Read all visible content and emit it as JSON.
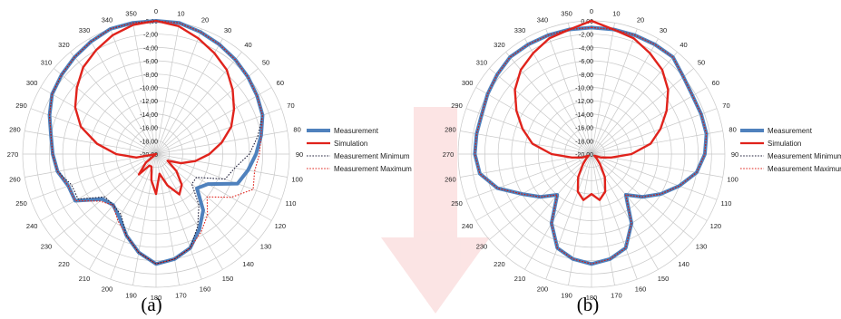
{
  "chart_data": [
    {
      "type": "polar-line",
      "caption": "(a)",
      "angle_labels": [
        "0",
        "10",
        "20",
        "30",
        "40",
        "50",
        "60",
        "70",
        "80",
        "90",
        "100",
        "110",
        "120",
        "130",
        "140",
        "150",
        "160",
        "170",
        "180",
        "190",
        "200",
        "210",
        "220",
        "230",
        "240",
        "250",
        "260",
        "270",
        "280",
        "290",
        "300",
        "310",
        "320",
        "330",
        "340",
        "350"
      ],
      "radial_ticks": [
        "0,00",
        "-2,00",
        "-4,00",
        "-6,00",
        "-8,00",
        "-10,00",
        "-12,00",
        "-14,00",
        "-16,00",
        "-18,00",
        "-20,00"
      ],
      "rlim": [
        -20,
        0
      ],
      "legend": [
        {
          "name": "Measurement",
          "color": "#4f81bd",
          "style": "solid"
        },
        {
          "name": "Simulation",
          "color": "#e0231c",
          "style": "solid"
        },
        {
          "name": "Measurement Minimum",
          "color": "#1f1f3a",
          "style": "dotted"
        },
        {
          "name": "Measurement Maximum",
          "color": "#e0231c",
          "style": "dotted"
        }
      ],
      "series": [
        {
          "name": "Measurement",
          "angles": [
            0,
            10,
            20,
            30,
            40,
            50,
            60,
            70,
            80,
            90,
            100,
            110,
            120,
            130,
            140,
            150,
            160,
            170,
            180,
            190,
            200,
            210,
            220,
            230,
            240,
            250,
            260,
            270,
            280,
            290,
            300,
            310,
            320,
            330,
            340,
            350
          ],
          "values": [
            0,
            0,
            -0.5,
            -1,
            -1.5,
            -2,
            -2.5,
            -3,
            -4,
            -5,
            -6,
            -7,
            -11,
            -12,
            -9,
            -7,
            -5,
            -4,
            -3.5,
            -5,
            -7,
            -9,
            -10,
            -9.5,
            -6,
            -6,
            -5,
            -4.5,
            -4,
            -3,
            -2,
            -1.5,
            -1,
            -0.5,
            0,
            0
          ]
        },
        {
          "name": "Simulation",
          "angles": [
            0,
            10,
            20,
            30,
            40,
            50,
            60,
            70,
            80,
            90,
            100,
            110,
            120,
            130,
            140,
            150,
            160,
            170,
            180,
            190,
            200,
            210,
            220,
            230,
            240,
            250,
            260,
            270,
            280,
            290,
            300,
            310,
            320,
            330,
            340,
            350
          ],
          "values": [
            0,
            -0.5,
            -1.5,
            -2.5,
            -3.5,
            -5,
            -6.5,
            -8,
            -10,
            -12,
            -14,
            -16,
            -18,
            -16,
            -14,
            -13,
            -15,
            -17,
            -14,
            -16,
            -18,
            -18,
            -16,
            -18,
            -20,
            -20,
            -17,
            -14,
            -11,
            -8,
            -6,
            -4.5,
            -3,
            -2,
            -1,
            -0.3
          ]
        },
        {
          "name": "Measurement Minimum",
          "angles": [
            0,
            10,
            20,
            30,
            40,
            50,
            60,
            70,
            80,
            90,
            100,
            110,
            120,
            130,
            140,
            150,
            160,
            170,
            180,
            190,
            200,
            210,
            220,
            230,
            240,
            250,
            260,
            270,
            280,
            290,
            300,
            310,
            320,
            330,
            340,
            350
          ],
          "values": [
            0,
            0,
            -0.5,
            -1,
            -1.5,
            -2,
            -2.5,
            -3,
            -4.5,
            -6,
            -8,
            -9,
            -13,
            -13,
            -10,
            -7.5,
            -5,
            -4,
            -3.5,
            -5,
            -7,
            -9.5,
            -10,
            -10,
            -6.5,
            -6.5,
            -5,
            -4.5,
            -4,
            -3,
            -2,
            -1.5,
            -1,
            -0.5,
            0,
            0
          ]
        },
        {
          "name": "Measurement Maximum",
          "angles": [
            0,
            10,
            20,
            30,
            40,
            50,
            60,
            70,
            80,
            90,
            100,
            110,
            120,
            130,
            140,
            150,
            160,
            170,
            180,
            190,
            200,
            210,
            220,
            230,
            240,
            250,
            260,
            270,
            280,
            290,
            300,
            310,
            320,
            330,
            340,
            350
          ],
          "values": [
            0,
            0,
            -0.5,
            -1,
            -1.5,
            -2,
            -2.5,
            -3,
            -4,
            -4.5,
            -5,
            -4.5,
            -7,
            -10,
            -8,
            -6.5,
            -5,
            -4,
            -3.5,
            -5,
            -7,
            -8.5,
            -10,
            -9,
            -6,
            -6,
            -5,
            -4.5,
            -4,
            -3,
            -2,
            -1.5,
            -1,
            -0.5,
            0,
            0
          ]
        }
      ]
    },
    {
      "type": "polar-line",
      "caption": "(b)",
      "angle_labels": [
        "0",
        "10",
        "20",
        "30",
        "40",
        "50",
        "60",
        "70",
        "80",
        "90",
        "100",
        "110",
        "120",
        "130",
        "140",
        "150",
        "160",
        "170",
        "180",
        "190",
        "200",
        "210",
        "220",
        "230",
        "240",
        "250",
        "260",
        "270",
        "280",
        "290",
        "300",
        "310",
        "320",
        "330",
        "340",
        "350"
      ],
      "radial_ticks": [
        "0,00",
        "-2,00",
        "-4,00",
        "-6,00",
        "-8,00",
        "-10,00",
        "-12,00",
        "-14,00",
        "-16,00",
        "-18,00",
        "-20,00"
      ],
      "rlim": [
        -20,
        0
      ],
      "legend": [
        {
          "name": "Measurement",
          "color": "#4f81bd",
          "style": "solid"
        },
        {
          "name": "Simulation",
          "color": "#e0231c",
          "style": "solid"
        },
        {
          "name": "Measurement Minimum",
          "color": "#1f1f3a",
          "style": "dotted"
        },
        {
          "name": "Measurement Maximum",
          "color": "#e0231c",
          "style": "dotted"
        }
      ],
      "series": [
        {
          "name": "Measurement",
          "angles": [
            0,
            10,
            20,
            30,
            40,
            50,
            60,
            70,
            80,
            90,
            100,
            110,
            120,
            130,
            140,
            150,
            160,
            170,
            180,
            190,
            200,
            210,
            220,
            230,
            240,
            250,
            260,
            270,
            280,
            290,
            300,
            310,
            320,
            330,
            340,
            350
          ],
          "values": [
            -1,
            -1,
            -1,
            -1,
            -1,
            -2,
            -2.5,
            -2.5,
            -2.5,
            -3,
            -4,
            -6,
            -8,
            -10,
            -12,
            -8,
            -5,
            -4,
            -3.5,
            -4,
            -5,
            -8,
            -12,
            -10,
            -8,
            -5,
            -3,
            -2.5,
            -2.5,
            -2.5,
            -2,
            -1.5,
            -1,
            -1,
            -1,
            -1
          ]
        },
        {
          "name": "Simulation",
          "angles": [
            0,
            10,
            20,
            30,
            40,
            50,
            60,
            70,
            80,
            90,
            100,
            110,
            120,
            130,
            140,
            150,
            160,
            170,
            180,
            190,
            200,
            210,
            220,
            230,
            240,
            250,
            260,
            270,
            280,
            290,
            300,
            310,
            320,
            330,
            340,
            350
          ],
          "values": [
            0,
            -1,
            -1.5,
            -2.5,
            -3.5,
            -5,
            -7,
            -9,
            -11,
            -14,
            -17,
            -18.5,
            -19.5,
            -19,
            -18,
            -16,
            -14,
            -13,
            -14,
            -13,
            -14,
            -16,
            -18,
            -19,
            -19.5,
            -18.5,
            -17,
            -14,
            -11,
            -9,
            -7,
            -5,
            -3.5,
            -2.5,
            -1.5,
            -1
          ]
        },
        {
          "name": "Measurement Minimum",
          "angles": [
            0,
            10,
            20,
            30,
            40,
            50,
            60,
            70,
            80,
            90,
            100,
            110,
            120,
            130,
            140,
            150,
            160,
            170,
            180,
            190,
            200,
            210,
            220,
            230,
            240,
            250,
            260,
            270,
            280,
            290,
            300,
            310,
            320,
            330,
            340,
            350
          ],
          "values": [
            -1,
            -1,
            -1,
            -1,
            -1,
            -2,
            -2.5,
            -2.5,
            -2.5,
            -3,
            -4,
            -6,
            -8,
            -10,
            -12,
            -8,
            -5,
            -4,
            -3.5,
            -4,
            -5,
            -8,
            -12,
            -10,
            -8,
            -5,
            -3,
            -2.5,
            -2.5,
            -2.5,
            -2,
            -1.5,
            -1,
            -1,
            -1,
            -1
          ]
        },
        {
          "name": "Measurement Maximum",
          "angles": [
            0,
            10,
            20,
            30,
            40,
            50,
            60,
            70,
            80,
            90,
            100,
            110,
            120,
            130,
            140,
            150,
            160,
            170,
            180,
            190,
            200,
            210,
            220,
            230,
            240,
            250,
            260,
            270,
            280,
            290,
            300,
            310,
            320,
            330,
            340,
            350
          ],
          "values": [
            -1,
            -1,
            -1,
            -1,
            -1,
            -2,
            -2.5,
            -2.5,
            -2.5,
            -3,
            -4,
            -6,
            -8,
            -10,
            -12,
            -8,
            -5,
            -4,
            -3.5,
            -4,
            -5,
            -8,
            -12,
            -10,
            -8,
            -5,
            -3,
            -2.5,
            -2.5,
            -2.5,
            -2,
            -1.5,
            -1,
            -1,
            -1,
            -1
          ]
        }
      ]
    }
  ]
}
